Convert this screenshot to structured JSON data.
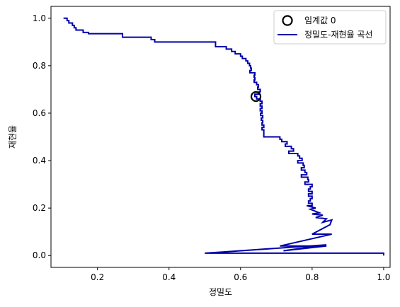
{
  "chart_data": {
    "type": "line",
    "xlabel": "정밀도",
    "ylabel": "재현율",
    "xlim": [
      0.07,
      1.018
    ],
    "ylim": [
      -0.05,
      1.05
    ],
    "xticks": [
      0.2,
      0.4,
      0.6,
      0.8,
      1.0
    ],
    "xtick_labels": [
      "0.2",
      "0.4",
      "0.6",
      "0.8",
      "1.0"
    ],
    "yticks": [
      0.0,
      0.2,
      0.4,
      0.6,
      0.8,
      1.0
    ],
    "ytick_labels": [
      "0.0",
      "0.2",
      "0.4",
      "0.6",
      "0.8",
      "1.0"
    ],
    "grid": false,
    "legend": {
      "placement": "top-right"
    },
    "series": [
      {
        "name": "정밀도-재현율 곡선",
        "color": "#0000aa",
        "style": "line",
        "points": [
          [
            0.105,
            1.0
          ],
          [
            0.115,
            1.0
          ],
          [
            0.115,
            0.99
          ],
          [
            0.12,
            0.99
          ],
          [
            0.12,
            0.98
          ],
          [
            0.13,
            0.98
          ],
          [
            0.13,
            0.97
          ],
          [
            0.135,
            0.97
          ],
          [
            0.135,
            0.96
          ],
          [
            0.14,
            0.96
          ],
          [
            0.14,
            0.95
          ],
          [
            0.16,
            0.95
          ],
          [
            0.16,
            0.94
          ],
          [
            0.175,
            0.94
          ],
          [
            0.175,
            0.935
          ],
          [
            0.27,
            0.935
          ],
          [
            0.27,
            0.92
          ],
          [
            0.35,
            0.92
          ],
          [
            0.35,
            0.91
          ],
          [
            0.36,
            0.91
          ],
          [
            0.36,
            0.9
          ],
          [
            0.53,
            0.9
          ],
          [
            0.53,
            0.88
          ],
          [
            0.56,
            0.88
          ],
          [
            0.56,
            0.87
          ],
          [
            0.575,
            0.87
          ],
          [
            0.575,
            0.86
          ],
          [
            0.585,
            0.86
          ],
          [
            0.585,
            0.85
          ],
          [
            0.6,
            0.85
          ],
          [
            0.6,
            0.84
          ],
          [
            0.605,
            0.84
          ],
          [
            0.605,
            0.83
          ],
          [
            0.615,
            0.83
          ],
          [
            0.615,
            0.82
          ],
          [
            0.62,
            0.82
          ],
          [
            0.62,
            0.81
          ],
          [
            0.625,
            0.81
          ],
          [
            0.625,
            0.8
          ],
          [
            0.628,
            0.8
          ],
          [
            0.628,
            0.79
          ],
          [
            0.63,
            0.79
          ],
          [
            0.63,
            0.78
          ],
          [
            0.626,
            0.78
          ],
          [
            0.626,
            0.77
          ],
          [
            0.64,
            0.77
          ],
          [
            0.64,
            0.76
          ],
          [
            0.638,
            0.76
          ],
          [
            0.638,
            0.75
          ],
          [
            0.64,
            0.75
          ],
          [
            0.64,
            0.74
          ],
          [
            0.638,
            0.74
          ],
          [
            0.638,
            0.73
          ],
          [
            0.645,
            0.73
          ],
          [
            0.645,
            0.72
          ],
          [
            0.65,
            0.72
          ],
          [
            0.65,
            0.71
          ],
          [
            0.648,
            0.71
          ],
          [
            0.648,
            0.7
          ],
          [
            0.655,
            0.7
          ],
          [
            0.655,
            0.69
          ],
          [
            0.652,
            0.69
          ],
          [
            0.652,
            0.68
          ],
          [
            0.64,
            0.68
          ],
          [
            0.64,
            0.67
          ],
          [
            0.645,
            0.67
          ],
          [
            0.645,
            0.66
          ],
          [
            0.655,
            0.66
          ],
          [
            0.655,
            0.65
          ],
          [
            0.66,
            0.65
          ],
          [
            0.66,
            0.64
          ],
          [
            0.655,
            0.64
          ],
          [
            0.655,
            0.63
          ],
          [
            0.66,
            0.63
          ],
          [
            0.66,
            0.62
          ],
          [
            0.655,
            0.62
          ],
          [
            0.655,
            0.61
          ],
          [
            0.66,
            0.61
          ],
          [
            0.66,
            0.6
          ],
          [
            0.656,
            0.6
          ],
          [
            0.656,
            0.59
          ],
          [
            0.662,
            0.59
          ],
          [
            0.662,
            0.58
          ],
          [
            0.658,
            0.58
          ],
          [
            0.658,
            0.57
          ],
          [
            0.662,
            0.57
          ],
          [
            0.662,
            0.56
          ],
          [
            0.66,
            0.56
          ],
          [
            0.66,
            0.55
          ],
          [
            0.665,
            0.55
          ],
          [
            0.665,
            0.54
          ],
          [
            0.66,
            0.54
          ],
          [
            0.66,
            0.53
          ],
          [
            0.665,
            0.53
          ],
          [
            0.665,
            0.52
          ],
          [
            0.665,
            0.5
          ],
          [
            0.71,
            0.5
          ],
          [
            0.71,
            0.49
          ],
          [
            0.715,
            0.49
          ],
          [
            0.715,
            0.48
          ],
          [
            0.73,
            0.48
          ],
          [
            0.73,
            0.47
          ],
          [
            0.725,
            0.47
          ],
          [
            0.725,
            0.46
          ],
          [
            0.742,
            0.46
          ],
          [
            0.742,
            0.45
          ],
          [
            0.748,
            0.45
          ],
          [
            0.748,
            0.44
          ],
          [
            0.735,
            0.44
          ],
          [
            0.735,
            0.43
          ],
          [
            0.76,
            0.43
          ],
          [
            0.76,
            0.42
          ],
          [
            0.765,
            0.42
          ],
          [
            0.765,
            0.41
          ],
          [
            0.772,
            0.41
          ],
          [
            0.772,
            0.4
          ],
          [
            0.76,
            0.4
          ],
          [
            0.76,
            0.39
          ],
          [
            0.775,
            0.39
          ],
          [
            0.775,
            0.38
          ],
          [
            0.778,
            0.38
          ],
          [
            0.778,
            0.37
          ],
          [
            0.77,
            0.37
          ],
          [
            0.77,
            0.36
          ],
          [
            0.78,
            0.36
          ],
          [
            0.78,
            0.35
          ],
          [
            0.785,
            0.35
          ],
          [
            0.785,
            0.34
          ],
          [
            0.77,
            0.34
          ],
          [
            0.77,
            0.33
          ],
          [
            0.788,
            0.33
          ],
          [
            0.788,
            0.32
          ],
          [
            0.79,
            0.32
          ],
          [
            0.79,
            0.31
          ],
          [
            0.78,
            0.31
          ],
          [
            0.78,
            0.3
          ],
          [
            0.8,
            0.3
          ],
          [
            0.8,
            0.29
          ],
          [
            0.795,
            0.29
          ],
          [
            0.795,
            0.28
          ],
          [
            0.79,
            0.28
          ],
          [
            0.79,
            0.27
          ],
          [
            0.8,
            0.27
          ],
          [
            0.8,
            0.26
          ],
          [
            0.79,
            0.26
          ],
          [
            0.79,
            0.25
          ],
          [
            0.8,
            0.25
          ],
          [
            0.8,
            0.24
          ],
          [
            0.795,
            0.24
          ],
          [
            0.795,
            0.23
          ],
          [
            0.79,
            0.23
          ],
          [
            0.79,
            0.22
          ],
          [
            0.8,
            0.22
          ],
          [
            0.8,
            0.21
          ],
          [
            0.785,
            0.21
          ],
          [
            0.81,
            0.2
          ],
          [
            0.795,
            0.195
          ],
          [
            0.82,
            0.18
          ],
          [
            0.8,
            0.175
          ],
          [
            0.83,
            0.17
          ],
          [
            0.81,
            0.16
          ],
          [
            0.84,
            0.155
          ],
          [
            0.83,
            0.14
          ],
          [
            0.855,
            0.15
          ],
          [
            0.85,
            0.13
          ],
          [
            0.8,
            0.09
          ],
          [
            0.855,
            0.09
          ],
          [
            0.71,
            0.04
          ],
          [
            0.84,
            0.04
          ],
          [
            0.72,
            0.02
          ],
          [
            0.84,
            0.045
          ],
          [
            0.55,
            0.015
          ],
          [
            0.5,
            0.01
          ],
          [
            1.0,
            0.01
          ],
          [
            1.0,
            0.0
          ]
        ]
      },
      {
        "name": "임계값 0",
        "style": "marker",
        "marker": "circle-open",
        "color": "#000000",
        "points": [
          [
            0.643,
            0.67
          ]
        ]
      }
    ]
  }
}
